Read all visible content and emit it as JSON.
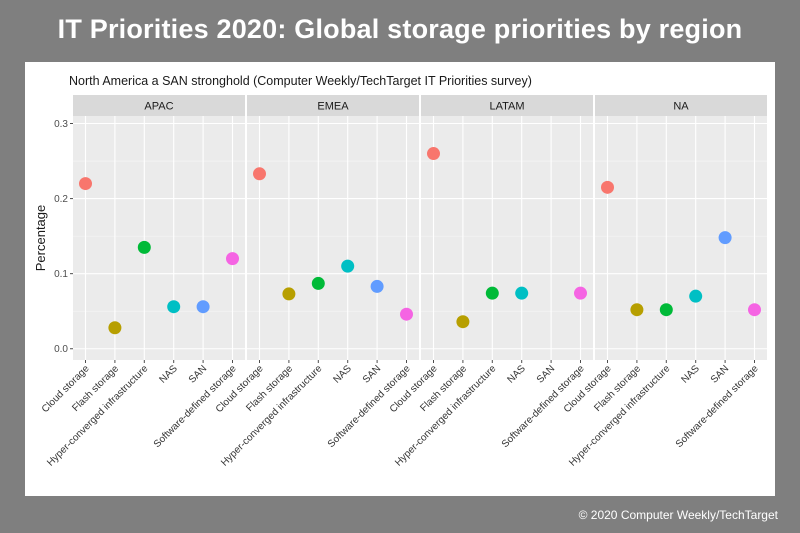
{
  "header": {
    "title": "IT Priorities 2020: Global storage priorities by region"
  },
  "footer": {
    "copyright": "© 2020 Computer Weekly/TechTarget"
  },
  "colors": {
    "Cloud storage": "#f8766d",
    "Flash storage": "#b79f00",
    "Hyper-converged infrastructure": "#00ba38",
    "NAS": "#00bfc4",
    "SAN": "#619cff",
    "Software-defined storage": "#f564e3"
  },
  "chart_data": {
    "type": "scatter",
    "subtitle": "North America a SAN stronghold (Computer Weekly/TechTarget IT Priorities survey)",
    "xlabel": "",
    "ylabel": "Percentage",
    "ylim": [
      -0.015,
      0.31
    ],
    "yticks": [
      0.0,
      0.1,
      0.2,
      0.3
    ],
    "ytick_labels": [
      "0.0",
      "0.1",
      "0.2",
      "0.3"
    ],
    "grid": true,
    "legend": "none",
    "categories": [
      "Cloud storage",
      "Flash storage",
      "Hyper-converged infrastructure",
      "NAS",
      "SAN",
      "Software-defined storage"
    ],
    "facets": [
      {
        "name": "APAC",
        "values": [
          0.22,
          0.028,
          0.135,
          0.056,
          0.056,
          0.12
        ]
      },
      {
        "name": "EMEA",
        "values": [
          0.233,
          0.073,
          0.087,
          0.11,
          0.083,
          0.046
        ]
      },
      {
        "name": "LATAM",
        "values": [
          0.26,
          0.036,
          0.074,
          0.074,
          null,
          0.074
        ]
      },
      {
        "name": "NA",
        "values": [
          0.215,
          0.052,
          0.052,
          0.07,
          0.148,
          0.052
        ]
      }
    ]
  }
}
